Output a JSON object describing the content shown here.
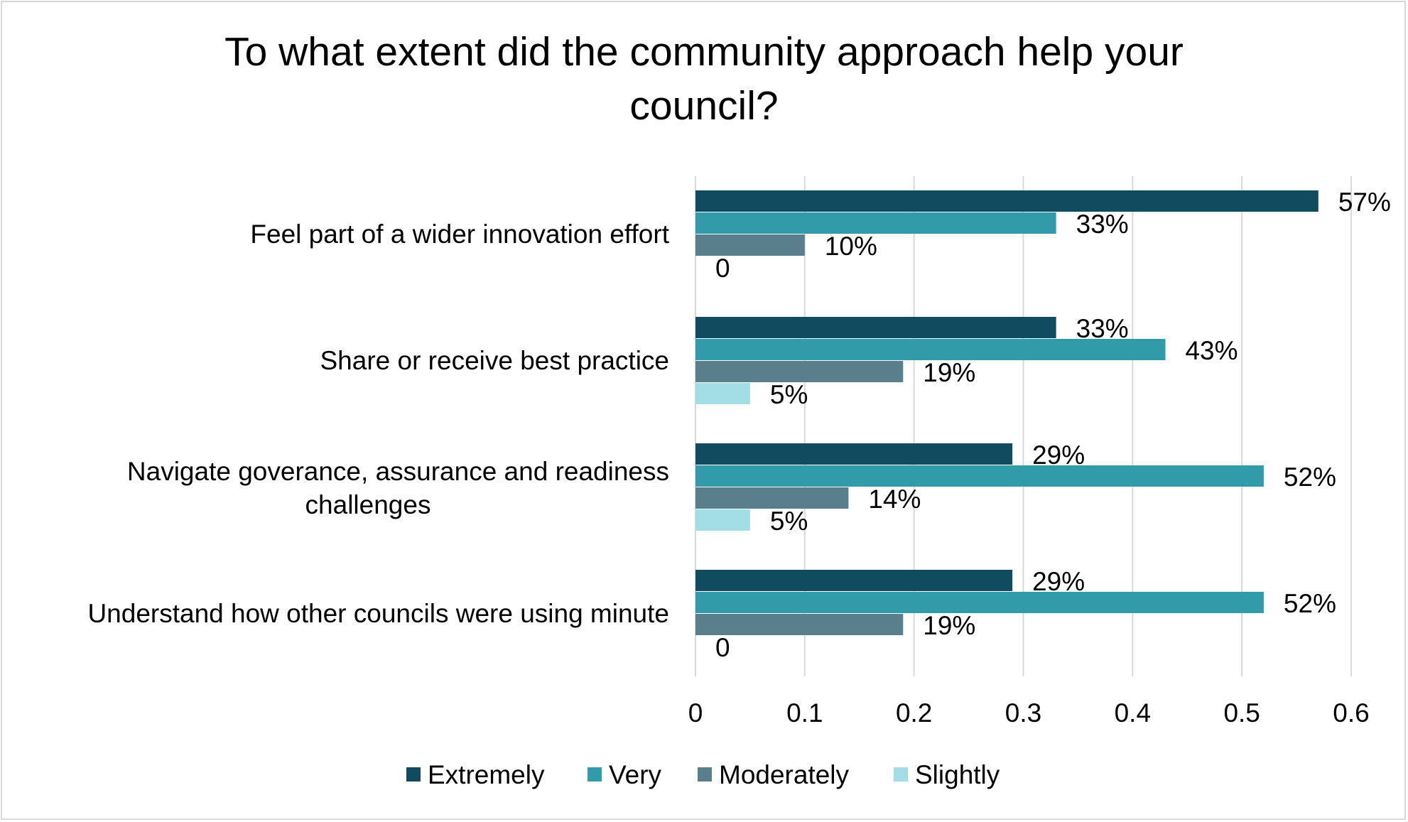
{
  "chart_data": {
    "type": "bar",
    "orientation": "horizontal",
    "title": "To what extent did the community approach help your council?",
    "categories": [
      "Feel part of a wider innovation effort",
      "Share or receive best practice",
      "Navigate goverance, assurance and readiness challenges",
      "Understand how other councils were using minute"
    ],
    "series": [
      {
        "name": "Extremely",
        "color": "#114b5f",
        "values": [
          0.57,
          0.33,
          0.29,
          0.29
        ],
        "labels": [
          "57%",
          "33%",
          "29%",
          "29%"
        ]
      },
      {
        "name": "Very",
        "color": "#319ba9",
        "values": [
          0.33,
          0.43,
          0.52,
          0.52
        ],
        "labels": [
          "33%",
          "43%",
          "52%",
          "52%"
        ]
      },
      {
        "name": "Moderately",
        "color": "#5a7f8c",
        "values": [
          0.1,
          0.19,
          0.14,
          0.19
        ],
        "labels": [
          "10%",
          "19%",
          "14%",
          "19%"
        ]
      },
      {
        "name": "Slightly",
        "color": "#a3dde6",
        "values": [
          0,
          0.05,
          0.05,
          0
        ],
        "labels": [
          "0",
          "5%",
          "5%",
          "0"
        ]
      }
    ],
    "xlim": [
      0,
      0.6
    ],
    "xticks": [
      "0",
      "0.1",
      "0.2",
      "0.3",
      "0.4",
      "0.5",
      "0.6"
    ],
    "grid": true,
    "legend_position": "bottom"
  }
}
